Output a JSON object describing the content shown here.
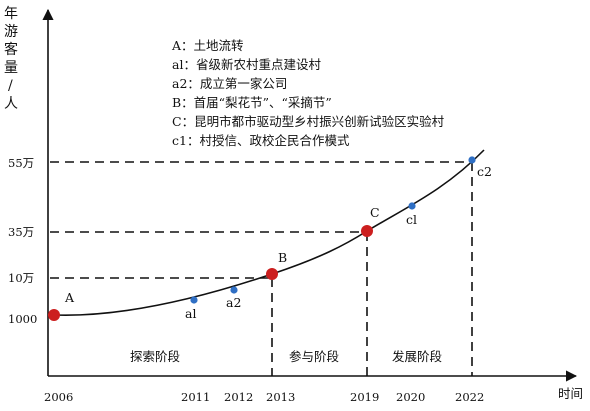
{
  "y_axis_title": [
    "年",
    "游",
    "客",
    "量",
    "/",
    "人"
  ],
  "x_axis_title": "时间",
  "y_ticks": [
    {
      "label": "55万",
      "value": 550000
    },
    {
      "label": "35万",
      "value": 350000
    },
    {
      "label": "10万",
      "value": 100000
    },
    {
      "label": "1000",
      "value": 1000
    }
  ],
  "x_ticks": [
    "2006",
    "2011",
    "2012",
    "2013",
    "2019",
    "2020",
    "2022"
  ],
  "legend": [
    "A：土地流转",
    "al：省级新农村重点建设村",
    "a2：成立第一家公司",
    "B：首届“梨花节”、“采摘节”",
    "C：昆明市都市驱动型乡村振兴创新试验区实验村",
    "c1：村授信、政校企民合作模式"
  ],
  "points": [
    {
      "label": "A",
      "year": 2006,
      "kind": "major"
    },
    {
      "label": "al",
      "year": 2011,
      "kind": "minor"
    },
    {
      "label": "a2",
      "year": 2012,
      "kind": "minor"
    },
    {
      "label": "B",
      "year": 2013,
      "kind": "major"
    },
    {
      "label": "C",
      "year": 2019,
      "kind": "major"
    },
    {
      "label": "cl",
      "year": 2020,
      "kind": "minor"
    },
    {
      "label": "c2",
      "year": 2022,
      "kind": "minor"
    }
  ],
  "stages": [
    "探索阶段",
    "参与阶段",
    "发展阶段"
  ],
  "colors": {
    "major": "#cc1f1f",
    "minor": "#2f6fc4",
    "ink": "#111111"
  }
}
